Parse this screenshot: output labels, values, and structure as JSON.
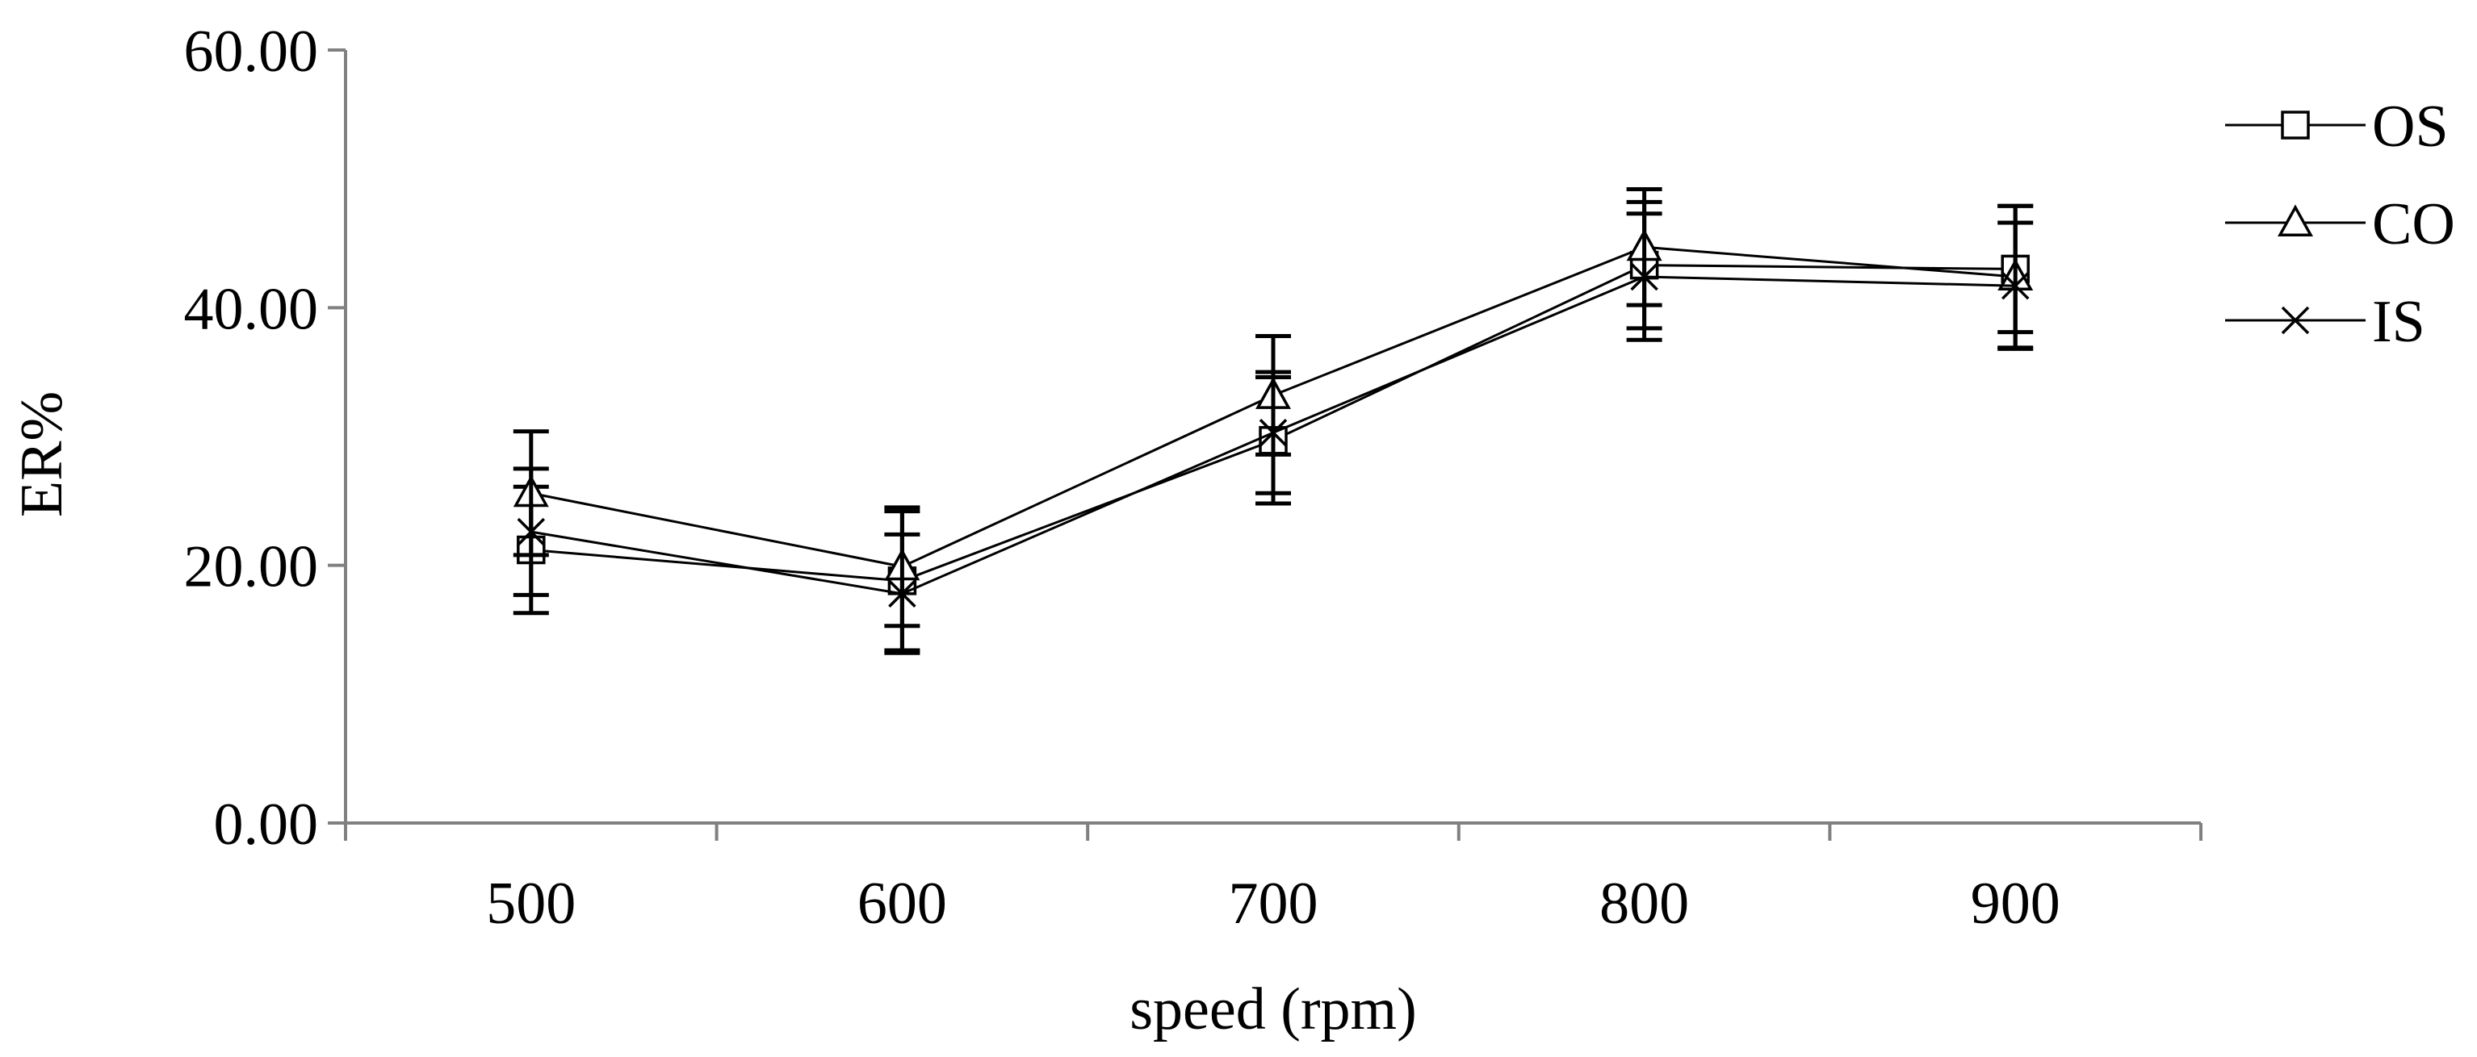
{
  "chart_data": {
    "type": "line",
    "title": "",
    "xlabel": "speed (rpm)",
    "ylabel": "ER%",
    "categories": [
      "500",
      "600",
      "700",
      "800",
      "900"
    ],
    "ylim": [
      0,
      60
    ],
    "yticks": [
      "0.00",
      "20.00",
      "40.00",
      "60.00"
    ],
    "yticks_values": [
      0,
      20,
      40,
      60
    ],
    "legend_position": "right",
    "series": [
      {
        "name": "OS",
        "marker": "square",
        "values": [
          21.2,
          18.8,
          29.7,
          43.3,
          43.0
        ],
        "error": [
          4.9,
          5.4,
          4.9,
          4.9,
          4.9
        ]
      },
      {
        "name": "CO",
        "marker": "triangle",
        "values": [
          25.6,
          19.9,
          33.2,
          44.7,
          42.4
        ],
        "error": [
          4.8,
          4.6,
          4.6,
          4.5,
          5.5
        ]
      },
      {
        "name": "IS",
        "marker": "x",
        "values": [
          22.6,
          17.8,
          30.3,
          42.4,
          41.7
        ],
        "error": [
          4.9,
          4.6,
          4.7,
          4.9,
          4.9
        ]
      }
    ]
  }
}
